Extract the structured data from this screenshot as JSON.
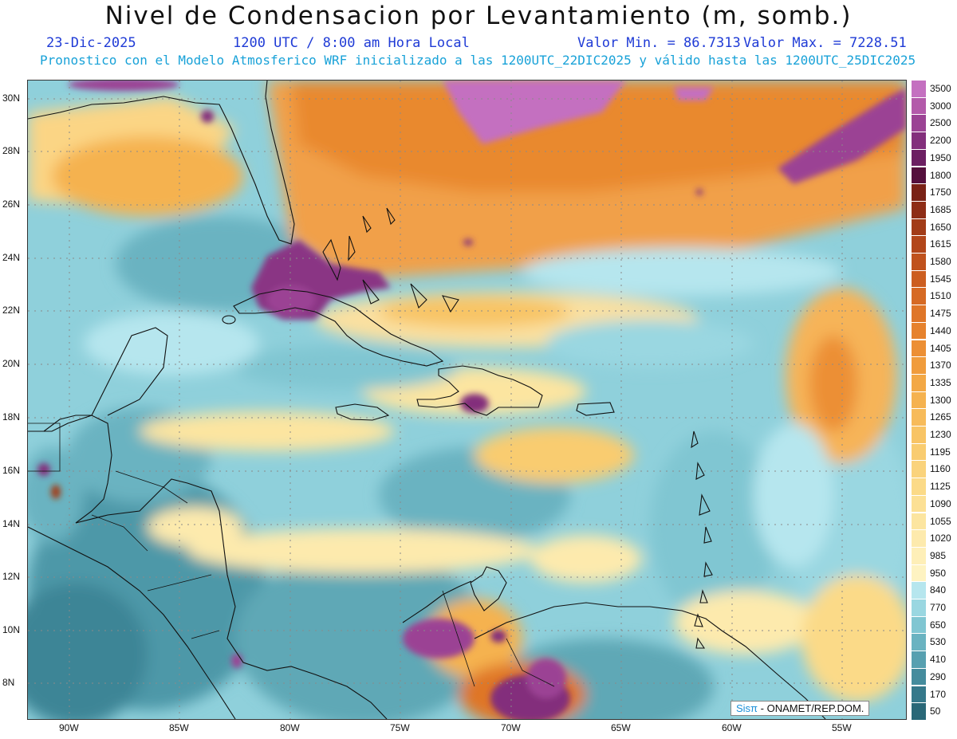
{
  "title": "Nivel de Condensacion por Levantamiento (m, somb.)",
  "date": "23-Dic-2025",
  "time": "1200 UTC / 8:00 am Hora Local",
  "min_label": "Valor Min. = 86.7313",
  "max_label": "Valor Max. = 7228.51",
  "model_info": "Pronostico con el Modelo Atmosferico WRF inicializado a las 1200UTC_22DIC2025 y válido hasta las  1200UTC_25DIC2025",
  "credit_brand": "Sisπ",
  "credit_text": " - ONAMET/REP.DOM.",
  "lat_labels": [
    "30N",
    "28N",
    "26N",
    "24N",
    "22N",
    "20N",
    "18N",
    "16N",
    "14N",
    "12N",
    "10N",
    "8N"
  ],
  "lon_labels": [
    "90W",
    "85W",
    "80W",
    "75W",
    "70W",
    "65W",
    "60W",
    "55W"
  ],
  "legend": [
    {
      "label": "3500",
      "color": "#c470c0"
    },
    {
      "label": "3000",
      "color": "#b35aaa"
    },
    {
      "label": "2500",
      "color": "#9b4394"
    },
    {
      "label": "2200",
      "color": "#832f7c"
    },
    {
      "label": "1950",
      "color": "#6c1f62"
    },
    {
      "label": "1800",
      "color": "#55103d"
    },
    {
      "label": "1750",
      "color": "#7a2216"
    },
    {
      "label": "1685",
      "color": "#8e2d16"
    },
    {
      "label": "1650",
      "color": "#a23c18"
    },
    {
      "label": "1615",
      "color": "#b2461a"
    },
    {
      "label": "1580",
      "color": "#c0521d"
    },
    {
      "label": "1545",
      "color": "#cc5e20"
    },
    {
      "label": "1510",
      "color": "#d66a24"
    },
    {
      "label": "1475",
      "color": "#df7628"
    },
    {
      "label": "1440",
      "color": "#e6822d"
    },
    {
      "label": "1405",
      "color": "#ec8f34"
    },
    {
      "label": "1370",
      "color": "#f09c3c"
    },
    {
      "label": "1335",
      "color": "#f3a845"
    },
    {
      "label": "1300",
      "color": "#f5b24f"
    },
    {
      "label": "1265",
      "color": "#f7bb5a"
    },
    {
      "label": "1230",
      "color": "#f8c465"
    },
    {
      "label": "1195",
      "color": "#f9cc70"
    },
    {
      "label": "1160",
      "color": "#fad37c"
    },
    {
      "label": "1125",
      "color": "#fbda88"
    },
    {
      "label": "1090",
      "color": "#fce095"
    },
    {
      "label": "1055",
      "color": "#fce5a0"
    },
    {
      "label": "1020",
      "color": "#fdeaad"
    },
    {
      "label": "985",
      "color": "#feefb8"
    },
    {
      "label": "950",
      "color": "#fef3c2"
    },
    {
      "label": "840",
      "color": "#b6e6ee"
    },
    {
      "label": "770",
      "color": "#9ad7e1"
    },
    {
      "label": "650",
      "color": "#80c6d2"
    },
    {
      "label": "530",
      "color": "#6ab3c1"
    },
    {
      "label": "410",
      "color": "#57a0b0"
    },
    {
      "label": "290",
      "color": "#458c9d"
    },
    {
      "label": "170",
      "color": "#36798b"
    },
    {
      "label": "50",
      "color": "#2a6878"
    }
  ]
}
